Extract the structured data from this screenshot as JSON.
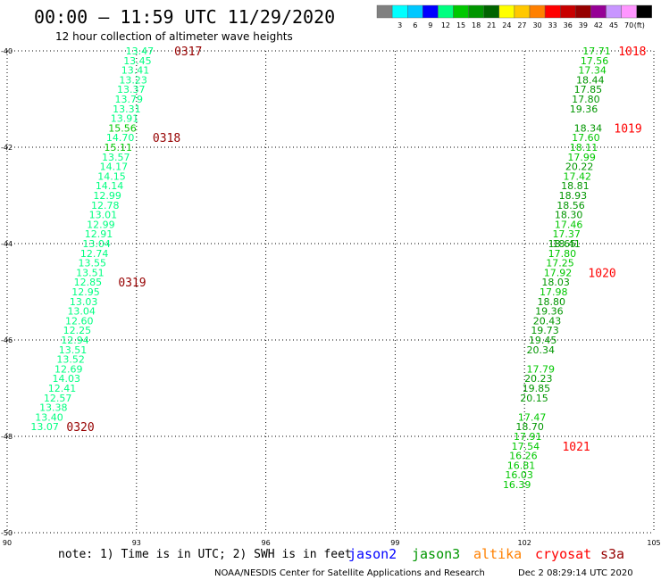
{
  "header": {
    "title": "00:00 — 11:59 UTC 11/29/2020",
    "subtitle": "12 hour collection of altimeter wave heights"
  },
  "legend": {
    "unit": "(ft)",
    "bins": [
      {
        "label": "",
        "color": "#808080"
      },
      {
        "label": "3",
        "color": "#00ffff"
      },
      {
        "label": "6",
        "color": "#00c8ff"
      },
      {
        "label": "9",
        "color": "#0000ff"
      },
      {
        "label": "12",
        "color": "#00ff80"
      },
      {
        "label": "15",
        "color": "#00c800"
      },
      {
        "label": "18",
        "color": "#009600"
      },
      {
        "label": "21",
        "color": "#006400"
      },
      {
        "label": "24",
        "color": "#ffff00"
      },
      {
        "label": "27",
        "color": "#ffc800"
      },
      {
        "label": "30",
        "color": "#ff8000"
      },
      {
        "label": "33",
        "color": "#ff0000"
      },
      {
        "label": "36",
        "color": "#c80000"
      },
      {
        "label": "39",
        "color": "#960000"
      },
      {
        "label": "42",
        "color": "#960096"
      },
      {
        "label": "45",
        "color": "#c896ff"
      },
      {
        "label": "70",
        "color": "#ff96ff"
      },
      {
        "label": "",
        "color": "#000000"
      }
    ]
  },
  "footer": {
    "note": "note: 1) Time is in UTC; 2) SWH is in feet",
    "satellites": [
      {
        "name": "jason2",
        "color": "#0000ff"
      },
      {
        "name": "jason3",
        "color": "#009600"
      },
      {
        "name": "altika",
        "color": "#ff8000"
      },
      {
        "name": "cryosat",
        "color": "#ff0000"
      },
      {
        "name": "s3a",
        "color": "#960000"
      }
    ],
    "credit": "NOAA/NESDIS Center for Satellite Applications and Research",
    "timestamp": "Dec  2 08:29:14 UTC 2020"
  },
  "chart_data": {
    "type": "scatter",
    "xlim": [
      90,
      105
    ],
    "ylim": [
      -50,
      -40
    ],
    "x_ticks": [
      "90",
      "93",
      "96",
      "99",
      "102",
      "105"
    ],
    "y_ticks": [
      "-40",
      "-42",
      "-44",
      "-46",
      "-48",
      "-50"
    ],
    "grid": true,
    "series": [
      {
        "color": "#00ff80",
        "points": [
          {
            "x": 93.4,
            "y": -40.0,
            "v": "13.47"
          },
          {
            "x": 93.35,
            "y": -40.2,
            "v": "13.45"
          },
          {
            "x": 93.3,
            "y": -40.4,
            "v": "13.41"
          },
          {
            "x": 93.25,
            "y": -40.6,
            "v": "13.23"
          },
          {
            "x": 93.2,
            "y": -40.8,
            "v": "13.37"
          },
          {
            "x": 93.15,
            "y": -41.0,
            "v": "13.79"
          },
          {
            "x": 93.1,
            "y": -41.2,
            "v": "13.31"
          },
          {
            "x": 93.05,
            "y": -41.4,
            "v": "13.91"
          },
          {
            "x": 92.95,
            "y": -41.8,
            "v": "14.70"
          },
          {
            "x": 92.85,
            "y": -42.2,
            "v": "13.57"
          },
          {
            "x": 92.8,
            "y": -42.4,
            "v": "14.17"
          },
          {
            "x": 92.75,
            "y": -42.6,
            "v": "14.15"
          },
          {
            "x": 92.7,
            "y": -42.8,
            "v": "14.14"
          },
          {
            "x": 92.65,
            "y": -43.0,
            "v": "12.99"
          },
          {
            "x": 92.6,
            "y": -43.2,
            "v": "12.78"
          },
          {
            "x": 92.55,
            "y": -43.4,
            "v": "13.01"
          },
          {
            "x": 92.5,
            "y": -43.6,
            "v": "12.99"
          },
          {
            "x": 92.45,
            "y": -43.8,
            "v": "12.91"
          },
          {
            "x": 92.4,
            "y": -44.0,
            "v": "13.04"
          },
          {
            "x": 92.35,
            "y": -44.2,
            "v": "12.74"
          },
          {
            "x": 92.3,
            "y": -44.4,
            "v": "13.55"
          },
          {
            "x": 92.25,
            "y": -44.6,
            "v": "13.51"
          },
          {
            "x": 92.2,
            "y": -44.8,
            "v": "12.85"
          },
          {
            "x": 92.15,
            "y": -45.0,
            "v": "12.95"
          },
          {
            "x": 92.1,
            "y": -45.2,
            "v": "13.03"
          },
          {
            "x": 92.05,
            "y": -45.4,
            "v": "13.04"
          },
          {
            "x": 92.0,
            "y": -45.6,
            "v": "12.60"
          },
          {
            "x": 91.95,
            "y": -45.8,
            "v": "12.25"
          },
          {
            "x": 91.9,
            "y": -46.0,
            "v": "12.94"
          },
          {
            "x": 91.85,
            "y": -46.2,
            "v": "13.51"
          },
          {
            "x": 91.8,
            "y": -46.4,
            "v": "13.52"
          },
          {
            "x": 91.75,
            "y": -46.6,
            "v": "12.69"
          },
          {
            "x": 91.7,
            "y": -46.8,
            "v": "14.03"
          },
          {
            "x": 91.6,
            "y": -47.0,
            "v": "12.41"
          },
          {
            "x": 91.5,
            "y": -47.2,
            "v": "12.57"
          },
          {
            "x": 91.4,
            "y": -47.4,
            "v": "13.38"
          },
          {
            "x": 91.3,
            "y": -47.6,
            "v": "13.40"
          },
          {
            "x": 91.2,
            "y": -47.8,
            "v": "13.07"
          }
        ]
      },
      {
        "color": "#00c800",
        "points": [
          {
            "x": 93.0,
            "y": -41.6,
            "v": "15.56"
          },
          {
            "x": 92.9,
            "y": -42.0,
            "v": "15.11"
          },
          {
            "x": 104.0,
            "y": -40.0,
            "v": "17.71"
          },
          {
            "x": 103.95,
            "y": -40.2,
            "v": "17.56"
          },
          {
            "x": 103.9,
            "y": -40.4,
            "v": "17.34"
          },
          {
            "x": 103.75,
            "y": -41.8,
            "v": "17.60"
          },
          {
            "x": 103.7,
            "y": -42.0,
            "v": "18.11"
          },
          {
            "x": 103.65,
            "y": -42.2,
            "v": "17.99"
          },
          {
            "x": 103.55,
            "y": -42.6,
            "v": "17.42"
          },
          {
            "x": 103.35,
            "y": -43.6,
            "v": "17.46"
          },
          {
            "x": 103.3,
            "y": -43.8,
            "v": "17.37"
          },
          {
            "x": 103.2,
            "y": -44.2,
            "v": "17.80"
          },
          {
            "x": 103.15,
            "y": -44.4,
            "v": "17.25"
          },
          {
            "x": 103.1,
            "y": -44.6,
            "v": "17.92"
          },
          {
            "x": 103.0,
            "y": -45.0,
            "v": "17.98"
          },
          {
            "x": 102.7,
            "y": -46.6,
            "v": "17.79"
          },
          {
            "x": 102.5,
            "y": -47.6,
            "v": "17.47"
          },
          {
            "x": 102.4,
            "y": -48.0,
            "v": "17.91"
          },
          {
            "x": 102.35,
            "y": -48.2,
            "v": "17.54"
          },
          {
            "x": 102.3,
            "y": -48.4,
            "v": "16.26"
          },
          {
            "x": 102.25,
            "y": -48.6,
            "v": "16.81"
          },
          {
            "x": 102.2,
            "y": -48.8,
            "v": "16.03"
          },
          {
            "x": 102.15,
            "y": -49.0,
            "v": "16.39"
          }
        ]
      },
      {
        "color": "#009600",
        "points": [
          {
            "x": 103.85,
            "y": -40.6,
            "v": "18.44"
          },
          {
            "x": 103.8,
            "y": -40.8,
            "v": "17.85"
          },
          {
            "x": 103.75,
            "y": -41.0,
            "v": "17.80"
          },
          {
            "x": 103.7,
            "y": -41.2,
            "v": "19.36"
          },
          {
            "x": 103.8,
            "y": -41.6,
            "v": "18.34"
          },
          {
            "x": 103.6,
            "y": -42.4,
            "v": "20.22"
          },
          {
            "x": 103.5,
            "y": -42.8,
            "v": "18.81"
          },
          {
            "x": 103.45,
            "y": -43.0,
            "v": "18.93"
          },
          {
            "x": 103.4,
            "y": -43.2,
            "v": "18.56"
          },
          {
            "x": 103.35,
            "y": -43.4,
            "v": "18.30"
          },
          {
            "x": 103.3,
            "y": -44.0,
            "v": "18.41"
          },
          {
            "x": 103.2,
            "y": -44.0,
            "v": "18.65"
          },
          {
            "x": 103.05,
            "y": -44.8,
            "v": "18.03"
          },
          {
            "x": 102.95,
            "y": -45.2,
            "v": "18.80"
          },
          {
            "x": 102.9,
            "y": -45.4,
            "v": "19.36"
          },
          {
            "x": 102.85,
            "y": -45.6,
            "v": "20.43"
          },
          {
            "x": 102.8,
            "y": -45.8,
            "v": "19.73"
          },
          {
            "x": 102.75,
            "y": -46.0,
            "v": "19.45"
          },
          {
            "x": 102.7,
            "y": -46.2,
            "v": "20.34"
          },
          {
            "x": 102.65,
            "y": -46.8,
            "v": "20.23"
          },
          {
            "x": 102.6,
            "y": -47.0,
            "v": "19.85"
          },
          {
            "x": 102.55,
            "y": -47.2,
            "v": "20.15"
          },
          {
            "x": 102.45,
            "y": -47.8,
            "v": "18.70"
          }
        ]
      }
    ],
    "time_labels": [
      {
        "x": 94.2,
        "y": -40.0,
        "label": "0317",
        "color": "#960000"
      },
      {
        "x": 93.7,
        "y": -41.8,
        "label": "0318",
        "color": "#960000"
      },
      {
        "x": 92.9,
        "y": -44.8,
        "label": "0319",
        "color": "#960000"
      },
      {
        "x": 91.7,
        "y": -47.8,
        "label": "0320",
        "color": "#960000"
      },
      {
        "x": 104.5,
        "y": -40.0,
        "label": "1018",
        "color": "#ff0000"
      },
      {
        "x": 104.4,
        "y": -41.6,
        "label": "1019",
        "color": "#ff0000"
      },
      {
        "x": 103.8,
        "y": -44.6,
        "label": "1020",
        "color": "#ff0000"
      },
      {
        "x": 103.2,
        "y": -48.2,
        "label": "1021",
        "color": "#ff0000"
      }
    ]
  }
}
